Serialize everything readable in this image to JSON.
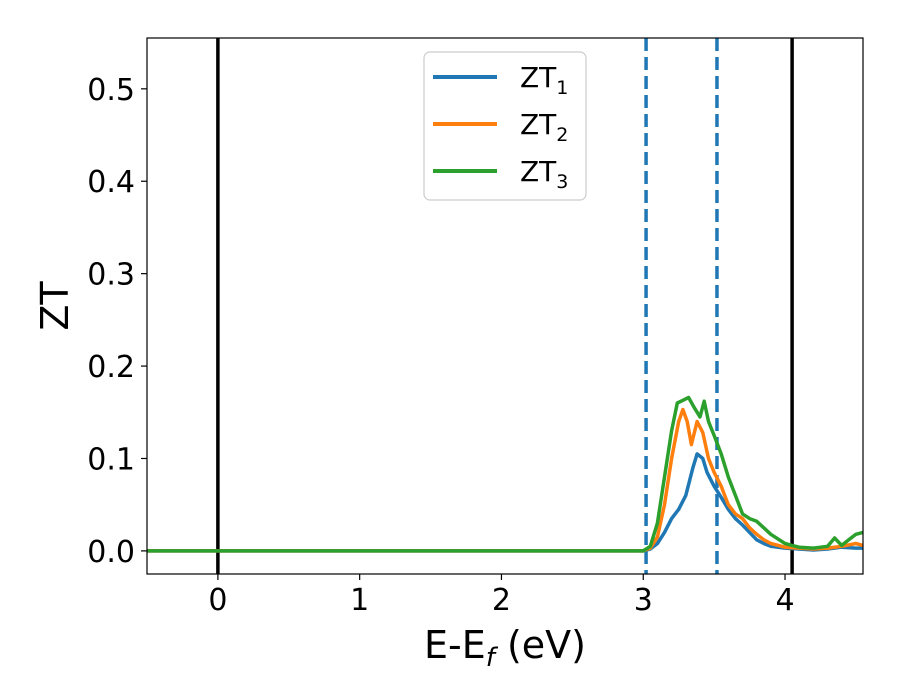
{
  "chart_data": {
    "type": "line",
    "xlabel": "E-E",
    "xlabel_sub": "f",
    "xlabel_unit": " (eV)",
    "ylabel": "ZT",
    "xlim": [
      -0.5,
      4.55
    ],
    "ylim": [
      -0.025,
      0.555
    ],
    "x_ticks": [
      0,
      1,
      2,
      3,
      4
    ],
    "x_tick_labels": [
      "0",
      "1",
      "2",
      "3",
      "4"
    ],
    "y_ticks": [
      0.0,
      0.1,
      0.2,
      0.3,
      0.4,
      0.5
    ],
    "y_tick_labels": [
      "0.0",
      "0.1",
      "0.2",
      "0.3",
      "0.4",
      "0.5"
    ],
    "grid": false,
    "legend_position": "top-center",
    "vertical_lines": [
      {
        "x": 0.0,
        "style": "solid",
        "color": "#000000"
      },
      {
        "x": 4.05,
        "style": "solid",
        "color": "#000000"
      },
      {
        "x": 3.02,
        "style": "dashed",
        "color": "#1f77b4"
      },
      {
        "x": 3.52,
        "style": "dashed",
        "color": "#1f77b4"
      }
    ],
    "series": [
      {
        "name": "ZT",
        "name_sub": "1",
        "color": "#1f77b4",
        "points": [
          [
            -0.5,
            0
          ],
          [
            3.0,
            0
          ],
          [
            3.05,
            0.002
          ],
          [
            3.1,
            0.008
          ],
          [
            3.15,
            0.02
          ],
          [
            3.2,
            0.035
          ],
          [
            3.25,
            0.045
          ],
          [
            3.3,
            0.06
          ],
          [
            3.35,
            0.09
          ],
          [
            3.38,
            0.105
          ],
          [
            3.42,
            0.1
          ],
          [
            3.45,
            0.085
          ],
          [
            3.5,
            0.07
          ],
          [
            3.55,
            0.058
          ],
          [
            3.6,
            0.045
          ],
          [
            3.65,
            0.035
          ],
          [
            3.7,
            0.028
          ],
          [
            3.75,
            0.02
          ],
          [
            3.8,
            0.012
          ],
          [
            3.85,
            0.008
          ],
          [
            3.9,
            0.005
          ],
          [
            4.0,
            0.003
          ],
          [
            4.1,
            0.002
          ],
          [
            4.2,
            0.001
          ],
          [
            4.3,
            0.002
          ],
          [
            4.4,
            0.004
          ],
          [
            4.5,
            0.003
          ],
          [
            4.55,
            0.003
          ]
        ]
      },
      {
        "name": "ZT",
        "name_sub": "2",
        "color": "#ff7f0e",
        "points": [
          [
            -0.5,
            0
          ],
          [
            3.0,
            0
          ],
          [
            3.05,
            0.003
          ],
          [
            3.1,
            0.015
          ],
          [
            3.15,
            0.05
          ],
          [
            3.2,
            0.1
          ],
          [
            3.25,
            0.14
          ],
          [
            3.28,
            0.153
          ],
          [
            3.31,
            0.14
          ],
          [
            3.34,
            0.115
          ],
          [
            3.38,
            0.14
          ],
          [
            3.42,
            0.128
          ],
          [
            3.46,
            0.1
          ],
          [
            3.5,
            0.085
          ],
          [
            3.55,
            0.07
          ],
          [
            3.6,
            0.05
          ],
          [
            3.65,
            0.04
          ],
          [
            3.7,
            0.035
          ],
          [
            3.75,
            0.025
          ],
          [
            3.8,
            0.018
          ],
          [
            3.85,
            0.012
          ],
          [
            3.9,
            0.008
          ],
          [
            4.0,
            0.004
          ],
          [
            4.1,
            0.003
          ],
          [
            4.2,
            0.002
          ],
          [
            4.3,
            0.003
          ],
          [
            4.4,
            0.005
          ],
          [
            4.5,
            0.008
          ],
          [
            4.55,
            0.006
          ]
        ]
      },
      {
        "name": "ZT",
        "name_sub": "3",
        "color": "#2ca02c",
        "points": [
          [
            -0.5,
            0
          ],
          [
            3.0,
            0
          ],
          [
            3.05,
            0.005
          ],
          [
            3.1,
            0.03
          ],
          [
            3.15,
            0.08
          ],
          [
            3.2,
            0.13
          ],
          [
            3.24,
            0.16
          ],
          [
            3.28,
            0.163
          ],
          [
            3.32,
            0.166
          ],
          [
            3.36,
            0.155
          ],
          [
            3.4,
            0.145
          ],
          [
            3.43,
            0.162
          ],
          [
            3.46,
            0.14
          ],
          [
            3.5,
            0.125
          ],
          [
            3.55,
            0.105
          ],
          [
            3.6,
            0.08
          ],
          [
            3.65,
            0.06
          ],
          [
            3.7,
            0.04
          ],
          [
            3.75,
            0.035
          ],
          [
            3.8,
            0.032
          ],
          [
            3.85,
            0.025
          ],
          [
            3.9,
            0.018
          ],
          [
            4.0,
            0.008
          ],
          [
            4.05,
            0.006
          ],
          [
            4.1,
            0.004
          ],
          [
            4.2,
            0.003
          ],
          [
            4.3,
            0.005
          ],
          [
            4.35,
            0.014
          ],
          [
            4.4,
            0.006
          ],
          [
            4.45,
            0.012
          ],
          [
            4.5,
            0.018
          ],
          [
            4.55,
            0.02
          ]
        ]
      }
    ]
  }
}
